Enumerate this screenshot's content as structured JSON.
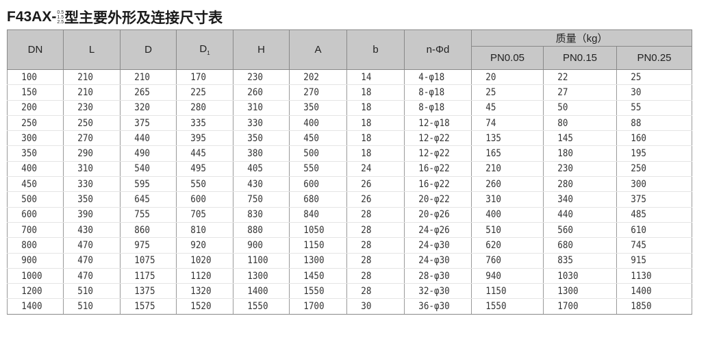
{
  "title": {
    "prefix": "F43AX-",
    "stack": [
      "0.5",
      "1.5",
      "2.5"
    ],
    "suffix": "型主要外形及连接尺寸表"
  },
  "headers": [
    "DN",
    "L",
    "D",
    "D",
    "H",
    "A",
    "b",
    "n-Φd"
  ],
  "d1_sub": "1",
  "mass_header": "质量（kg）",
  "mass_sub": [
    "PN0.05",
    "PN0.15",
    "PN0.25"
  ],
  "rows": [
    [
      "100",
      "210",
      "210",
      "170",
      "230",
      "202",
      "14",
      "4-φ18",
      "20",
      "22",
      "25"
    ],
    [
      "150",
      "210",
      "265",
      "225",
      "260",
      "270",
      "18",
      "8-φ18",
      "25",
      "27",
      "30"
    ],
    [
      "200",
      "230",
      "320",
      "280",
      "310",
      "350",
      "18",
      "8-φ18",
      "45",
      "50",
      "55"
    ],
    [
      "250",
      "250",
      "375",
      "335",
      "330",
      "400",
      "18",
      "12-φ18",
      "74",
      "80",
      "88"
    ],
    [
      "300",
      "270",
      "440",
      "395",
      "350",
      "450",
      "18",
      "12-φ22",
      "135",
      "145",
      "160"
    ],
    [
      "350",
      "290",
      "490",
      "445",
      "380",
      "500",
      "18",
      "12-φ22",
      "165",
      "180",
      "195"
    ],
    [
      "400",
      "310",
      "540",
      "495",
      "405",
      "550",
      "24",
      "16-φ22",
      "210",
      "230",
      "250"
    ],
    [
      "450",
      "330",
      "595",
      "550",
      "430",
      "600",
      "26",
      "16-φ22",
      "260",
      "280",
      "300"
    ],
    [
      "500",
      "350",
      "645",
      "600",
      "750",
      "680",
      "26",
      "20-φ22",
      "310",
      "340",
      "375"
    ],
    [
      "600",
      "390",
      "755",
      "705",
      "830",
      "840",
      "28",
      "20-φ26",
      "400",
      "440",
      "485"
    ],
    [
      "700",
      "430",
      "860",
      "810",
      "880",
      "1050",
      "28",
      "24-φ26",
      "510",
      "560",
      "610"
    ],
    [
      "800",
      "470",
      "975",
      "920",
      "900",
      "1150",
      "28",
      "24-φ30",
      "620",
      "680",
      "745"
    ],
    [
      "900",
      "470",
      "1075",
      "1020",
      "1100",
      "1300",
      "28",
      "24-φ30",
      "760",
      "835",
      "915"
    ],
    [
      "1000",
      "470",
      "1175",
      "1120",
      "1300",
      "1450",
      "28",
      "28-φ30",
      "940",
      "1030",
      "1130"
    ],
    [
      "1200",
      "510",
      "1375",
      "1320",
      "1400",
      "1550",
      "28",
      "32-φ30",
      "1150",
      "1300",
      "1400"
    ],
    [
      "1400",
      "510",
      "1575",
      "1520",
      "1550",
      "1700",
      "30",
      "36-φ30",
      "1550",
      "1700",
      "1850"
    ]
  ]
}
